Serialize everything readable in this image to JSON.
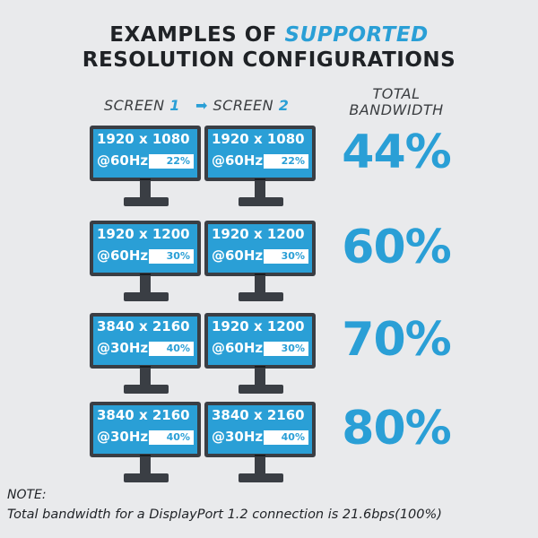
{
  "title": {
    "prefix": "EXAMPLES OF ",
    "accent": "SUPPORTED",
    "line2": "RESOLUTION CONFIGURATIONS"
  },
  "headers": {
    "screen1_label": "SCREEN ",
    "screen1_num": "1",
    "arrow": "➡",
    "screen2_label": "SCREEN ",
    "screen2_num": "2",
    "total_line1": "TOTAL",
    "total_line2": "BANDWIDTH"
  },
  "rows": [
    {
      "screen1": {
        "resolution": "1920 x 1080",
        "refresh": "@60Hz",
        "bandwidth": "22%"
      },
      "screen2": {
        "resolution": "1920 x 1080",
        "refresh": "@60Hz",
        "bandwidth": "22%"
      },
      "total": "44%"
    },
    {
      "screen1": {
        "resolution": "1920 x 1200",
        "refresh": "@60Hz",
        "bandwidth": "30%"
      },
      "screen2": {
        "resolution": "1920 x 1200",
        "refresh": "@60Hz",
        "bandwidth": "30%"
      },
      "total": "60%"
    },
    {
      "screen1": {
        "resolution": "3840 x 2160",
        "refresh": "@30Hz",
        "bandwidth": "40%"
      },
      "screen2": {
        "resolution": "1920 x 1200",
        "refresh": "@60Hz",
        "bandwidth": "30%"
      },
      "total": "70%"
    },
    {
      "screen1": {
        "resolution": "3840 x 2160",
        "refresh": "@30Hz",
        "bandwidth": "40%"
      },
      "screen2": {
        "resolution": "3840 x 2160",
        "refresh": "@30Hz",
        "bandwidth": "40%"
      },
      "total": "80%"
    }
  ],
  "note": {
    "label": "NOTE:",
    "text": "Total bandwidth for a DisplayPort 1.2 connection is 21.6bps(100%)"
  },
  "colors": {
    "accent": "#2a9fd6",
    "background": "#e9eaec",
    "monitor": "#3a3e44",
    "text": "#1f2226"
  }
}
